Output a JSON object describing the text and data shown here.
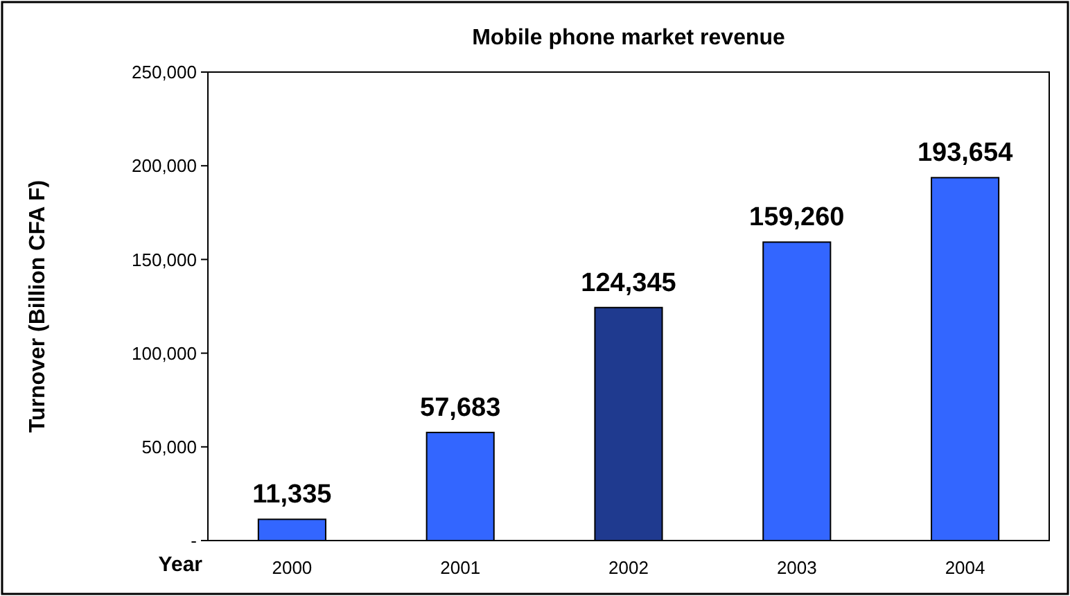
{
  "chart_data": {
    "type": "bar",
    "title": "Mobile phone market revenue",
    "xlabel": "Year",
    "ylabel": "Turnover (Billion CFA F)",
    "categories": [
      "2000",
      "2001",
      "2002",
      "2003",
      "2004"
    ],
    "values": [
      11335,
      57683,
      124345,
      159260,
      193654
    ],
    "colors": [
      "#3366ff",
      "#3366ff",
      "#1f3a8f",
      "#3366ff",
      "#3366ff"
    ],
    "ylim": [
      0,
      250000
    ],
    "yticks": [
      {
        "value": 0,
        "label": "-"
      },
      {
        "value": 50000,
        "label": "50,000"
      },
      {
        "value": 100000,
        "label": "100,000"
      },
      {
        "value": 150000,
        "label": "150,000"
      },
      {
        "value": 200000,
        "label": "200,000"
      },
      {
        "value": 250000,
        "label": "250,000"
      }
    ],
    "value_labels": [
      "11,335",
      "57,683",
      "124,345",
      "159,260",
      "193,654"
    ],
    "grid": false
  }
}
